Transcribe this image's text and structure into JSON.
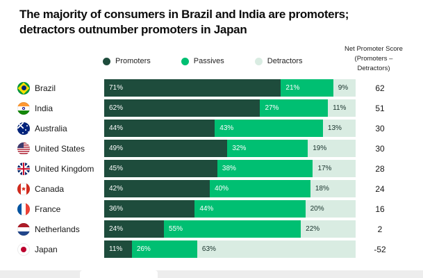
{
  "title": "The majority of consumers in Brazil and India are promoters;\ndetractors outnumber promoters in Japan",
  "nps_header": "Net Promoter Score\n(Promoters –\nDetractors)",
  "legend": {
    "items": [
      {
        "label": "Promoters",
        "color": "#1e4c3c"
      },
      {
        "label": "Passives",
        "color": "#00bf72"
      },
      {
        "label": "Detractors",
        "color": "#d9ece2"
      }
    ]
  },
  "colors": {
    "promoters": "#1e4c3c",
    "passives": "#00bf72",
    "detractors": "#d9ece2",
    "label_on_dark": "#ffffff",
    "label_on_light": "#16302a"
  },
  "chart_data": {
    "type": "bar",
    "orientation": "horizontal",
    "stacked": true,
    "unit": "percent",
    "title": "The majority of consumers in Brazil and India are promoters; detractors outnumber promoters in Japan",
    "legend_position": "top",
    "xlim": [
      0,
      100
    ],
    "categories": [
      "Brazil",
      "India",
      "Australia",
      "United States",
      "United Kingdom",
      "Canada",
      "France",
      "Netherlands",
      "Japan"
    ],
    "series": [
      {
        "name": "Promoters",
        "values": [
          71,
          62,
          44,
          49,
          45,
          42,
          36,
          24,
          11
        ]
      },
      {
        "name": "Passives",
        "values": [
          21,
          27,
          43,
          32,
          38,
          40,
          44,
          55,
          26
        ]
      },
      {
        "name": "Detractors",
        "values": [
          9,
          11,
          13,
          19,
          17,
          18,
          20,
          22,
          63
        ]
      }
    ],
    "net_promoter_scores": [
      62,
      51,
      30,
      30,
      28,
      24,
      16,
      2,
      -52
    ]
  }
}
